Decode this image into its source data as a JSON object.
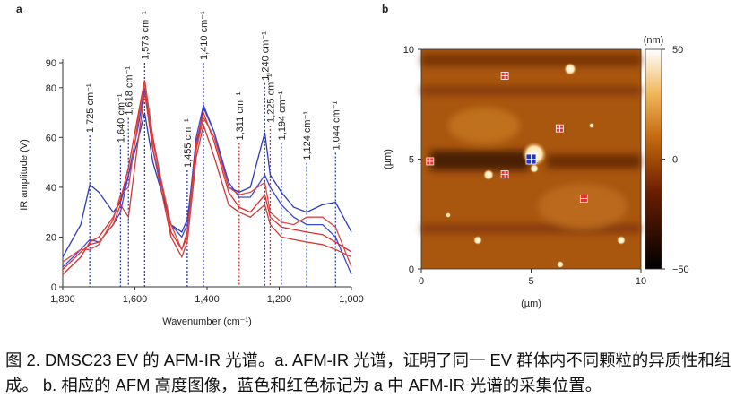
{
  "chart_data": [
    {
      "type": "line",
      "panel": "a",
      "x_label": "Wavenumber (cm⁻¹)",
      "y_label": "IR amplitude (V)",
      "xlim": [
        1800,
        1000
      ],
      "ylim": [
        0,
        90
      ],
      "xticks": [
        {
          "value": 1800,
          "label": "1,800"
        },
        {
          "value": 1600,
          "label": "1,600"
        },
        {
          "value": 1400,
          "label": "1,400"
        },
        {
          "value": 1200,
          "label": "1,200"
        },
        {
          "value": 1000,
          "label": "1,000"
        }
      ],
      "yticks": [
        0,
        20,
        40,
        60,
        80,
        90
      ],
      "x": [
        1800,
        1750,
        1725,
        1700,
        1660,
        1640,
        1618,
        1590,
        1573,
        1550,
        1500,
        1470,
        1455,
        1430,
        1410,
        1380,
        1340,
        1311,
        1280,
        1240,
        1225,
        1194,
        1160,
        1124,
        1080,
        1044,
        1000
      ],
      "series": [
        {
          "color": "#2b3bb8",
          "values": [
            12,
            25,
            41,
            38,
            30,
            34,
            45,
            60,
            70,
            50,
            25,
            22,
            27,
            55,
            72,
            62,
            40,
            38,
            40,
            62,
            45,
            38,
            32,
            30,
            33,
            34,
            22
          ]
        },
        {
          "color": "#3a4ad0",
          "values": [
            8,
            15,
            19,
            18,
            25,
            30,
            45,
            65,
            80,
            55,
            25,
            20,
            25,
            60,
            73,
            62,
            42,
            36,
            36,
            45,
            40,
            33,
            28,
            25,
            25,
            20,
            5
          ]
        },
        {
          "color": "#e02a2a",
          "values": [
            5,
            12,
            18,
            20,
            28,
            35,
            48,
            70,
            83,
            60,
            22,
            15,
            22,
            58,
            70,
            58,
            38,
            32,
            30,
            37,
            28,
            24,
            23,
            22,
            21,
            18,
            14
          ]
        },
        {
          "color": "#cc3a3a",
          "values": [
            7,
            14,
            17,
            18,
            25,
            33,
            28,
            60,
            78,
            55,
            20,
            12,
            18,
            52,
            65,
            52,
            33,
            30,
            28,
            33,
            25,
            20,
            19,
            18,
            17,
            15,
            12
          ]
        },
        {
          "color": "#d84848",
          "values": [
            10,
            15,
            15,
            17,
            27,
            37,
            40,
            68,
            82,
            58,
            25,
            15,
            20,
            55,
            68,
            60,
            40,
            37,
            38,
            42,
            30,
            26,
            25,
            28,
            28,
            24,
            8
          ]
        }
      ],
      "annotations": [
        {
          "value": 1725,
          "label": "1,725 cm⁻¹",
          "color": "#2b3bb8"
        },
        {
          "value": 1640,
          "label": "1,640 cm⁻¹",
          "color": "#2b3bb8"
        },
        {
          "value": 1618,
          "label": "1,618 cm⁻¹",
          "color": "#2b3bb8"
        },
        {
          "value": 1573,
          "label": "1,573 cm⁻¹",
          "color": "#2b3bb8"
        },
        {
          "value": 1455,
          "label": "1,455 cm⁻¹",
          "color": "#2b3bb8"
        },
        {
          "value": 1410,
          "label": "1,410 cm⁻¹",
          "color": "#2b3bb8"
        },
        {
          "value": 1311,
          "label": "1,311 cm⁻¹",
          "color": "#e02a2a"
        },
        {
          "value": 1240,
          "label": "1,240 cm⁻¹",
          "color": "#2b3bb8"
        },
        {
          "value": 1225,
          "label": "1,225 cm⁻¹",
          "color": "#e02a2a"
        },
        {
          "value": 1194,
          "label": "1,194 cm⁻¹",
          "color": "#2b3bb8"
        },
        {
          "value": 1124,
          "label": "1,124 cm⁻¹",
          "color": "#2b3bb8"
        },
        {
          "value": 1044,
          "label": "1,044 cm⁻¹",
          "color": "#2b3bb8"
        }
      ]
    },
    {
      "type": "image",
      "panel": "b",
      "x_label": "(µm)",
      "y_label": "(µm)",
      "xlim": [
        0,
        10
      ],
      "ylim": [
        0,
        10
      ],
      "xticks": [
        0,
        5,
        10
      ],
      "yticks": [
        0,
        5,
        10
      ],
      "colorbar": {
        "label": "(nm)",
        "lim": [
          -50,
          50
        ],
        "ticks": [
          {
            "value": -50,
            "label": "−50"
          },
          0,
          50
        ]
      },
      "markers": [
        {
          "x": 5.0,
          "y": 5.0,
          "color": "#2233cc"
        },
        {
          "x": 0.4,
          "y": 4.9,
          "color": "#e03030"
        },
        {
          "x": 3.8,
          "y": 8.8,
          "color": "#e03030"
        },
        {
          "x": 6.3,
          "y": 6.4,
          "color": "#e03030"
        },
        {
          "x": 3.8,
          "y": 4.3,
          "color": "#e03030"
        },
        {
          "x": 7.4,
          "y": 3.2,
          "color": "#e03030"
        }
      ]
    }
  ],
  "caption": "图 2. DMSC23 EV 的 AFM-IR 光谱。a. AFM-IR 光谱，证明了同一 EV 群体内不同颗粒的异质性和组成。 b. 相应的 AFM 高度图像，蓝色和红色标记为 a 中 AFM-IR 光谱的采集位置。"
}
